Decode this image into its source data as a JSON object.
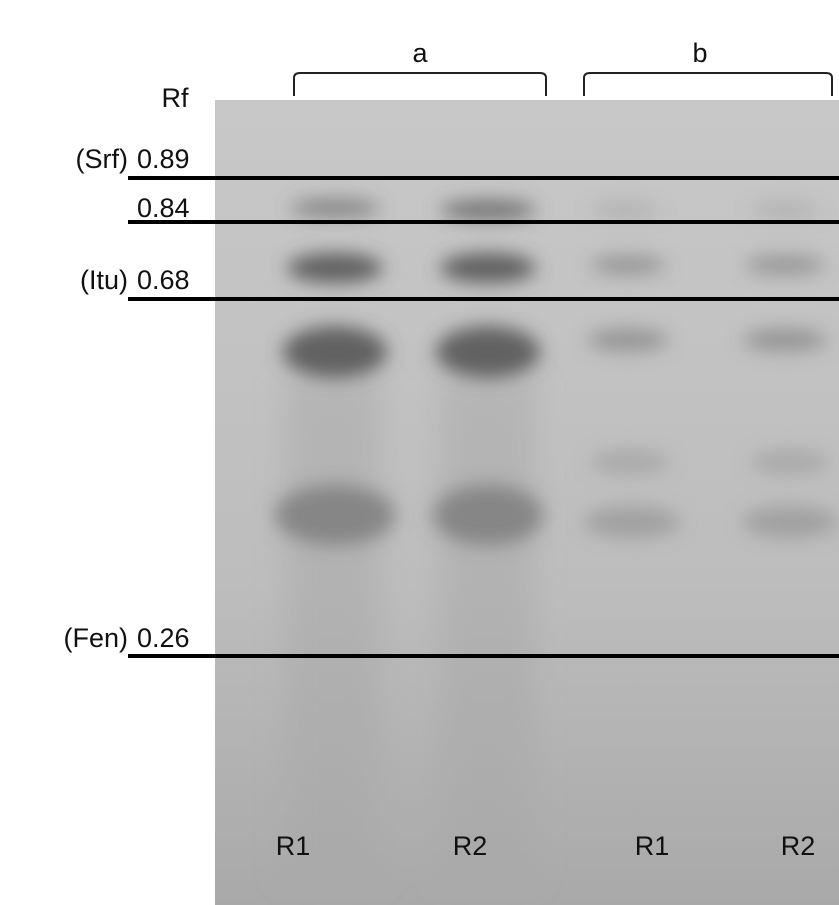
{
  "header": {
    "groups": [
      "a",
      "b"
    ],
    "rf_label": "Rf"
  },
  "markers": [
    {
      "compound": "(Srf)",
      "rf": "0.89"
    },
    {
      "compound": null,
      "rf": "0.84"
    },
    {
      "compound": "(Itu)",
      "rf": "0.68"
    },
    {
      "compound": "(Fen)",
      "rf": "0.26"
    }
  ],
  "lanes": [
    "R1",
    "R2",
    "R1",
    "R2"
  ]
}
